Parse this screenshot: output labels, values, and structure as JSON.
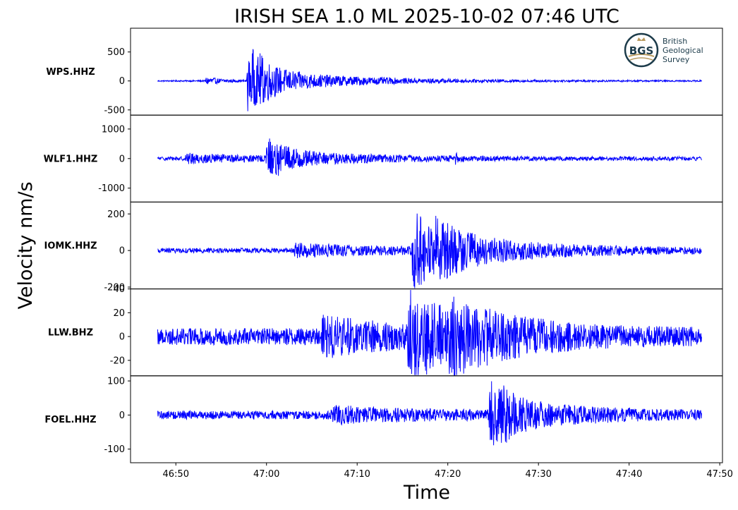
{
  "chart_data": {
    "type": "line",
    "title": "IRISH SEA 1.0 ML   2025-10-02 07:46 UTC",
    "xlabel": "Time",
    "ylabel": "Velocity nm/s",
    "x_ticks": [
      "46:50",
      "47:00",
      "47:10",
      "47:20",
      "47:30",
      "47:40",
      "47:50"
    ],
    "x_tick_values_s": [
      50,
      60,
      70,
      80,
      90,
      100,
      110
    ],
    "xlim_s": [
      45.0,
      110.3
    ],
    "data_range_s": [
      48.0,
      108.0
    ],
    "grid": false,
    "line_color": "#0000ff",
    "panels": [
      {
        "station": "WPS.HHZ",
        "ylim": [
          -590,
          910
        ],
        "yticks": [
          500,
          0,
          -500
        ],
        "ytick_labels": [
          "500",
          "0",
          "-500"
        ],
        "noise": 12,
        "events": [
          {
            "t": 53.2,
            "amp": 75,
            "dur": 2.0
          },
          {
            "t": 57.8,
            "amp": 860,
            "dur": 0.35
          },
          {
            "t": 58.2,
            "amp": 560,
            "dur": 1.6
          },
          {
            "t": 59.0,
            "amp": 210,
            "dur": 10.0
          }
        ]
      },
      {
        "station": "WLF1.HHZ",
        "ylim": [
          -1470,
          1470
        ],
        "yticks": [
          1000,
          0,
          -1000
        ],
        "ytick_labels": [
          "1000",
          "0",
          "-1000"
        ],
        "noise": 70,
        "events": [
          {
            "t": 51.0,
            "amp": 140,
            "dur": 8.0
          },
          {
            "t": 59.9,
            "amp": 1350,
            "dur": 0.3
          },
          {
            "t": 60.2,
            "amp": 600,
            "dur": 1.6
          },
          {
            "t": 61.0,
            "amp": 220,
            "dur": 10.0
          },
          {
            "t": 80.7,
            "amp": 180,
            "dur": 0.4
          }
        ]
      },
      {
        "station": "IOMK.HHZ",
        "ylim": [
          -210,
          265
        ],
        "yticks": [
          200,
          0,
          -200
        ],
        "ytick_labels": [
          "200",
          "0",
          "-200"
        ],
        "noise": 14,
        "events": [
          {
            "t": 63.0,
            "amp": 32,
            "dur": 12.0
          },
          {
            "t": 76.0,
            "amp": 235,
            "dur": 3.5
          },
          {
            "t": 78.5,
            "amp": 70,
            "dur": 12.0
          }
        ]
      },
      {
        "station": "LLW.BHZ",
        "ylim": [
          -33,
          40
        ],
        "yticks": [
          40,
          20,
          0,
          -20
        ],
        "ytick_labels": [
          "40",
          "20",
          "0",
          "-20"
        ],
        "noise": 7.5,
        "events": [
          {
            "t": 66.0,
            "amp": 14,
            "dur": 8.0
          },
          {
            "t": 75.5,
            "amp": 32,
            "dur": 6.5
          },
          {
            "t": 80.0,
            "amp": 14,
            "dur": 9.0
          }
        ]
      },
      {
        "station": "FOEL.HHZ",
        "ylim": [
          -140,
          115
        ],
        "yticks": [
          100,
          0,
          -100
        ],
        "ytick_labels": [
          "100",
          "0",
          "-100"
        ],
        "noise": 13,
        "events": [
          {
            "t": 67.0,
            "amp": 20,
            "dur": 10.0
          },
          {
            "t": 84.5,
            "amp": 120,
            "dur": 1.6
          },
          {
            "t": 85.5,
            "amp": 40,
            "dur": 9.0
          }
        ]
      }
    ]
  },
  "logo": {
    "initials": "BGS",
    "line1": "British",
    "line2": "Geological",
    "line3": "Survey",
    "ring_color": "#1c3b4a",
    "accent_color": "#b89a5e"
  }
}
